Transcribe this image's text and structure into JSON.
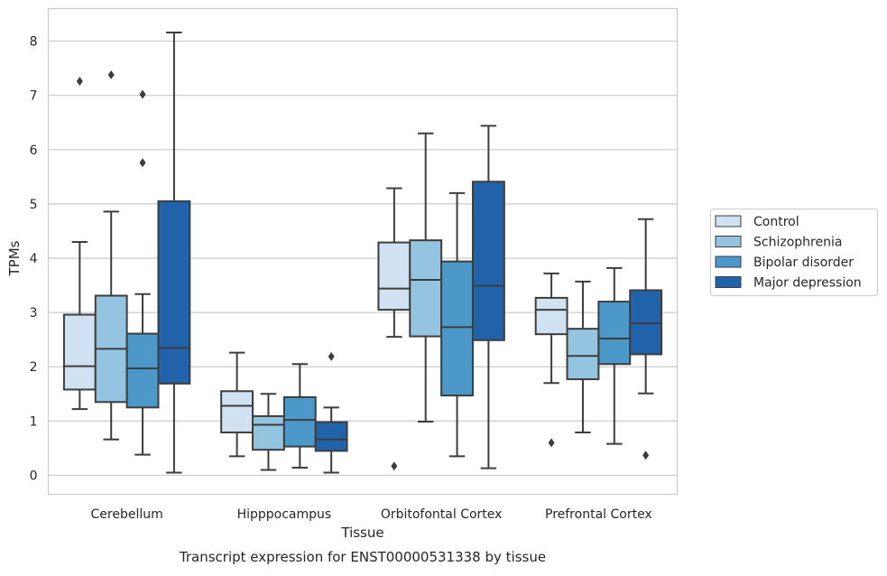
{
  "chart_data": {
    "type": "box",
    "caption": "Transcript expression for ENST00000531338 by tissue",
    "xlabel": "Tissue",
    "ylabel": "TPMs",
    "ylim": [
      -0.35,
      8.6
    ],
    "yticks": [
      "0",
      "1",
      "2",
      "3",
      "4",
      "5",
      "6",
      "7",
      "8"
    ],
    "grid": true,
    "legend_position": "right",
    "categories": [
      "Cerebellum",
      "Hipppocampus",
      "Orbitofontal Cortex",
      "Prefrontal Cortex"
    ],
    "series": [
      {
        "name": "Control",
        "color": "#d0e1f2",
        "boxes": [
          {
            "whislo": 1.22,
            "q1": 1.58,
            "med": 2.01,
            "q3": 2.96,
            "whishi": 4.3,
            "fliers": [
              7.26
            ]
          },
          {
            "whislo": 0.35,
            "q1": 0.79,
            "med": 1.28,
            "q3": 1.55,
            "whishi": 2.26,
            "fliers": []
          },
          {
            "whislo": 2.55,
            "q1": 3.05,
            "med": 3.44,
            "q3": 4.29,
            "whishi": 5.29,
            "fliers": [
              0.17
            ]
          },
          {
            "whislo": 1.7,
            "q1": 2.6,
            "med": 3.05,
            "q3": 3.27,
            "whishi": 3.72,
            "fliers": [
              0.6
            ]
          }
        ]
      },
      {
        "name": "Schizophrenia",
        "color": "#94c4df",
        "boxes": [
          {
            "whislo": 0.66,
            "q1": 1.35,
            "med": 2.33,
            "q3": 3.31,
            "whishi": 4.86,
            "fliers": [
              7.38
            ]
          },
          {
            "whislo": 0.1,
            "q1": 0.47,
            "med": 0.93,
            "q3": 1.09,
            "whishi": 1.5,
            "fliers": []
          },
          {
            "whislo": 0.99,
            "q1": 2.56,
            "med": 3.6,
            "q3": 4.33,
            "whishi": 6.3,
            "fliers": []
          },
          {
            "whislo": 0.79,
            "q1": 1.77,
            "med": 2.2,
            "q3": 2.7,
            "whishi": 3.57,
            "fliers": []
          }
        ]
      },
      {
        "name": "Bipolar disorder",
        "color": "#4b98c9",
        "boxes": [
          {
            "whislo": 0.38,
            "q1": 1.25,
            "med": 1.97,
            "q3": 2.61,
            "whishi": 3.34,
            "fliers": [
              5.76,
              7.02
            ]
          },
          {
            "whislo": 0.14,
            "q1": 0.53,
            "med": 1.02,
            "q3": 1.44,
            "whishi": 2.05,
            "fliers": []
          },
          {
            "whislo": 0.35,
            "q1": 1.47,
            "med": 2.73,
            "q3": 3.94,
            "whishi": 5.2,
            "fliers": []
          },
          {
            "whislo": 0.58,
            "q1": 2.05,
            "med": 2.52,
            "q3": 3.2,
            "whishi": 3.82,
            "fliers": []
          }
        ]
      },
      {
        "name": "Major depression",
        "color": "#2163aa",
        "boxes": [
          {
            "whislo": 0.05,
            "q1": 1.69,
            "med": 2.35,
            "q3": 5.05,
            "whishi": 8.16,
            "fliers": []
          },
          {
            "whislo": 0.05,
            "q1": 0.45,
            "med": 0.66,
            "q3": 0.98,
            "whishi": 1.25,
            "fliers": [
              2.19
            ]
          },
          {
            "whislo": 0.13,
            "q1": 2.49,
            "med": 3.49,
            "q3": 5.41,
            "whishi": 6.44,
            "fliers": []
          },
          {
            "whislo": 1.51,
            "q1": 2.23,
            "med": 2.8,
            "q3": 3.41,
            "whishi": 4.72,
            "fliers": [
              0.37
            ]
          }
        ]
      }
    ]
  }
}
